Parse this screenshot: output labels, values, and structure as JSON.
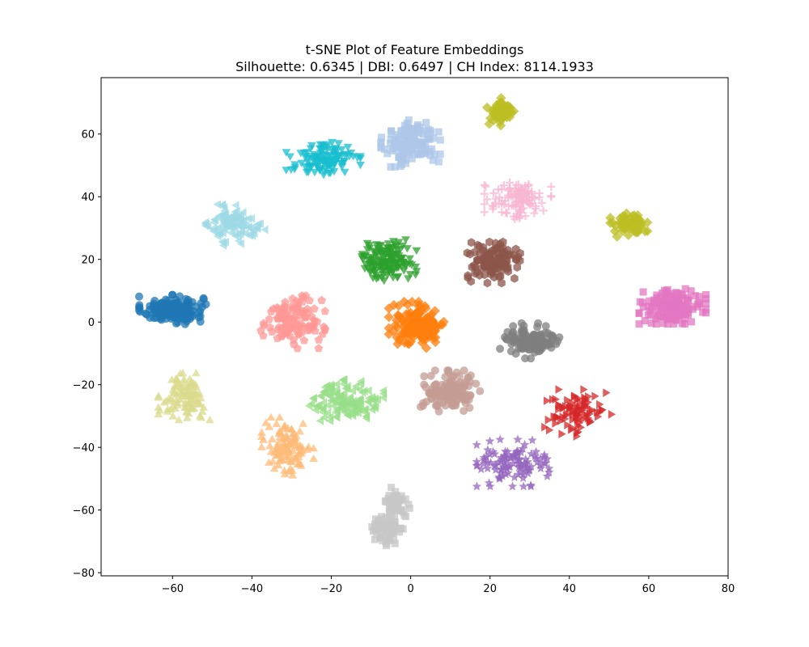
{
  "chart_data": {
    "type": "scatter",
    "title": "t-SNE Plot of Feature Embeddings",
    "subtitle": "Silhouette: 0.6345 | DBI: 0.6497 | CH Index: 8114.1933",
    "xlabel": "",
    "ylabel": "",
    "xlim": [
      -78,
      80
    ],
    "ylim": [
      -81,
      78
    ],
    "xticks": [
      -60,
      -40,
      -20,
      0,
      20,
      40,
      60,
      80
    ],
    "yticks": [
      -80,
      -60,
      -40,
      -20,
      0,
      20,
      40,
      60
    ],
    "xtick_labels": [
      "−60",
      "−40",
      "−20",
      "0",
      "20",
      "40",
      "60",
      "80"
    ],
    "ytick_labels": [
      "−80",
      "−60",
      "−40",
      "−20",
      "0",
      "20",
      "40",
      "60"
    ],
    "grid": false,
    "legend": "none",
    "clusters": [
      {
        "center": [
          -60,
          4
        ],
        "spread": [
          4.5,
          2.5
        ],
        "color": "#1f77b4",
        "marker": "circle",
        "count": 160
      },
      {
        "center": [
          0,
          57
        ],
        "spread": [
          4,
          4
        ],
        "color": "#aec7e8",
        "marker": "square",
        "count": 140
      },
      {
        "center": [
          2,
          -1
        ],
        "spread": [
          4,
          4
        ],
        "color": "#ff7f0e",
        "marker": "diamond",
        "count": 150
      },
      {
        "center": [
          -31,
          -40
        ],
        "spread": [
          3.5,
          5
        ],
        "color": "#ffbb78",
        "marker": "triangle-up",
        "count": 110
      },
      {
        "center": [
          -6,
          20
        ],
        "spread": [
          4,
          3.5
        ],
        "color": "#2ca02c",
        "marker": "triangle-down",
        "count": 140
      },
      {
        "center": [
          -16,
          -25
        ],
        "spread": [
          5,
          3.5
        ],
        "color": "#98df8a",
        "marker": "triangle-left",
        "count": 140
      },
      {
        "center": [
          42,
          -29
        ],
        "spread": [
          4.5,
          4
        ],
        "color": "#d62728",
        "marker": "triangle-right",
        "count": 90
      },
      {
        "center": [
          -30,
          0
        ],
        "spread": [
          4.5,
          4.5
        ],
        "color": "#ff9896",
        "marker": "pentagon",
        "count": 120
      },
      {
        "center": [
          26,
          -45
        ],
        "spread": [
          5,
          4
        ],
        "color": "#9467bd",
        "marker": "star",
        "count": 110
      },
      {
        "center": [
          10,
          -22
        ],
        "spread": [
          4,
          3.5
        ],
        "color": "#c49c94",
        "marker": "circle",
        "count": 130
      },
      {
        "center": [
          21,
          19
        ],
        "spread": [
          4,
          3.5
        ],
        "color": "#8c564b",
        "marker": "hexagon",
        "count": 110
      },
      {
        "center": [
          66,
          5
        ],
        "spread": [
          4.5,
          3
        ],
        "color": "#e377c2",
        "marker": "square",
        "count": 160
      },
      {
        "center": [
          27,
          39
        ],
        "spread": [
          4.5,
          3.5
        ],
        "color": "#f7b6d2",
        "marker": "plus",
        "count": 110
      },
      {
        "center": [
          30,
          -6
        ],
        "spread": [
          4,
          3
        ],
        "color": "#7f7f7f",
        "marker": "circle",
        "count": 120
      },
      {
        "center": [
          -4,
          -58
        ],
        "spread": [
          2,
          3
        ],
        "color": "#c7c7c7",
        "marker": "square",
        "count": 45
      },
      {
        "center": [
          -6,
          -67
        ],
        "spread": [
          2.5,
          3
        ],
        "color": "#c7c7c7",
        "marker": "square",
        "count": 65
      },
      {
        "center": [
          23,
          67
        ],
        "spread": [
          2,
          2.5
        ],
        "color": "#bcbd22",
        "marker": "diamond",
        "count": 50
      },
      {
        "center": [
          55,
          31
        ],
        "spread": [
          2.5,
          2
        ],
        "color": "#bcbd22",
        "marker": "diamond",
        "count": 60
      },
      {
        "center": [
          -57,
          -24
        ],
        "spread": [
          3.5,
          4
        ],
        "color": "#dbdb8d",
        "marker": "triangle-up",
        "count": 100
      },
      {
        "center": [
          -22,
          52
        ],
        "spread": [
          5,
          3
        ],
        "color": "#17becf",
        "marker": "triangle-down",
        "count": 110
      },
      {
        "center": [
          -44,
          31
        ],
        "spread": [
          4,
          3.5
        ],
        "color": "#9edae5",
        "marker": "triangle-left",
        "count": 110
      }
    ]
  }
}
